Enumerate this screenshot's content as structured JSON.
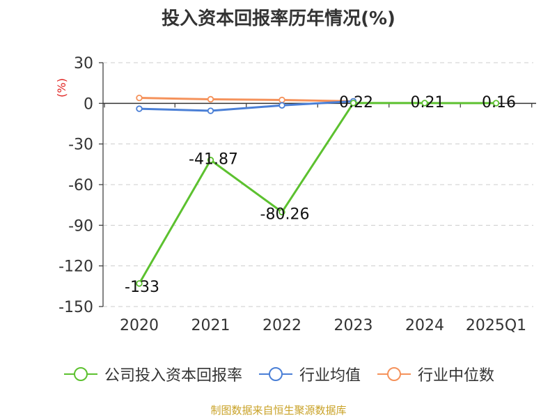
{
  "chart_data": {
    "type": "line",
    "title": "投入资本回报率历年情况(%)",
    "ylabel": "(%)",
    "xlabel": "",
    "categories": [
      "2020",
      "2021",
      "2022",
      "2023",
      "2024",
      "2025Q1"
    ],
    "ylim": [
      -150,
      30
    ],
    "yticks": [
      30,
      0,
      -30,
      -60,
      -90,
      -120,
      -150
    ],
    "grid": true,
    "legend_position": "bottom",
    "series": [
      {
        "name": "公司投入资本回报率",
        "color": "#5cc12f",
        "values": [
          -133,
          -41.87,
          -80.26,
          0.22,
          0.21,
          0.16
        ],
        "labels": [
          "-133",
          "-41.87",
          "-80.26",
          "0.22",
          "0.21",
          "0.16"
        ]
      },
      {
        "name": "行业均值",
        "color": "#4a7fd6",
        "values": [
          -4,
          -5.5,
          -1.5,
          1.5,
          null,
          null
        ]
      },
      {
        "name": "行业中位数",
        "color": "#f5925b",
        "values": [
          4,
          3,
          2.5,
          1.5,
          null,
          null
        ]
      }
    ]
  },
  "footer": {
    "source": "制图数据来自恒生聚源数据库"
  }
}
